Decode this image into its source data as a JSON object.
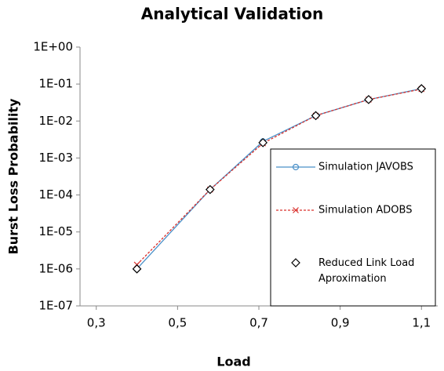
{
  "chart_data": {
    "type": "line",
    "title": "Analytical Validation",
    "x_label": "Load",
    "y_label": "Burst Loss Probability",
    "x": [
      0.4,
      0.58,
      0.71,
      0.84,
      0.97,
      1.1
    ],
    "series": [
      {
        "name": "Simulation JAVOBS",
        "color": "#4a90c8",
        "marker": "circle",
        "line": "solid",
        "values": [
          1e-06,
          0.00014,
          0.0028,
          0.014,
          0.038,
          0.075
        ]
      },
      {
        "name": "Simulation ADOBS",
        "color": "#d9302c",
        "marker": "x",
        "line": "dashed",
        "values": [
          1.3e-06,
          0.00014,
          0.0025,
          0.014,
          0.038,
          0.073
        ]
      },
      {
        "name": "Reduced Link Load Aproximation",
        "color": "#000000",
        "marker": "diamond",
        "line": "none",
        "values": [
          1e-06,
          0.00014,
          0.0026,
          0.014,
          0.038,
          0.075
        ]
      }
    ],
    "xlim": [
      0.26,
      1.14
    ],
    "xticks": [
      {
        "value": 0.3,
        "label": "0,3"
      },
      {
        "value": 0.5,
        "label": "0,5"
      },
      {
        "value": 0.7,
        "label": "0,7"
      },
      {
        "value": 0.9,
        "label": "0,9"
      },
      {
        "value": 1.1,
        "label": "1,1"
      }
    ],
    "ylim": [
      1e-07,
      1
    ],
    "y_scale": "log",
    "yticks": [
      {
        "value": 1,
        "label": "1E+00"
      },
      {
        "value": 0.1,
        "label": "1E-01"
      },
      {
        "value": 0.01,
        "label": "1E-02"
      },
      {
        "value": 0.001,
        "label": "1E-03"
      },
      {
        "value": 0.0001,
        "label": "1E-04"
      },
      {
        "value": 1e-05,
        "label": "1E-05"
      },
      {
        "value": 1e-06,
        "label": "1E-06"
      },
      {
        "value": 1e-07,
        "label": "1E-07"
      }
    ],
    "legend": "right"
  }
}
